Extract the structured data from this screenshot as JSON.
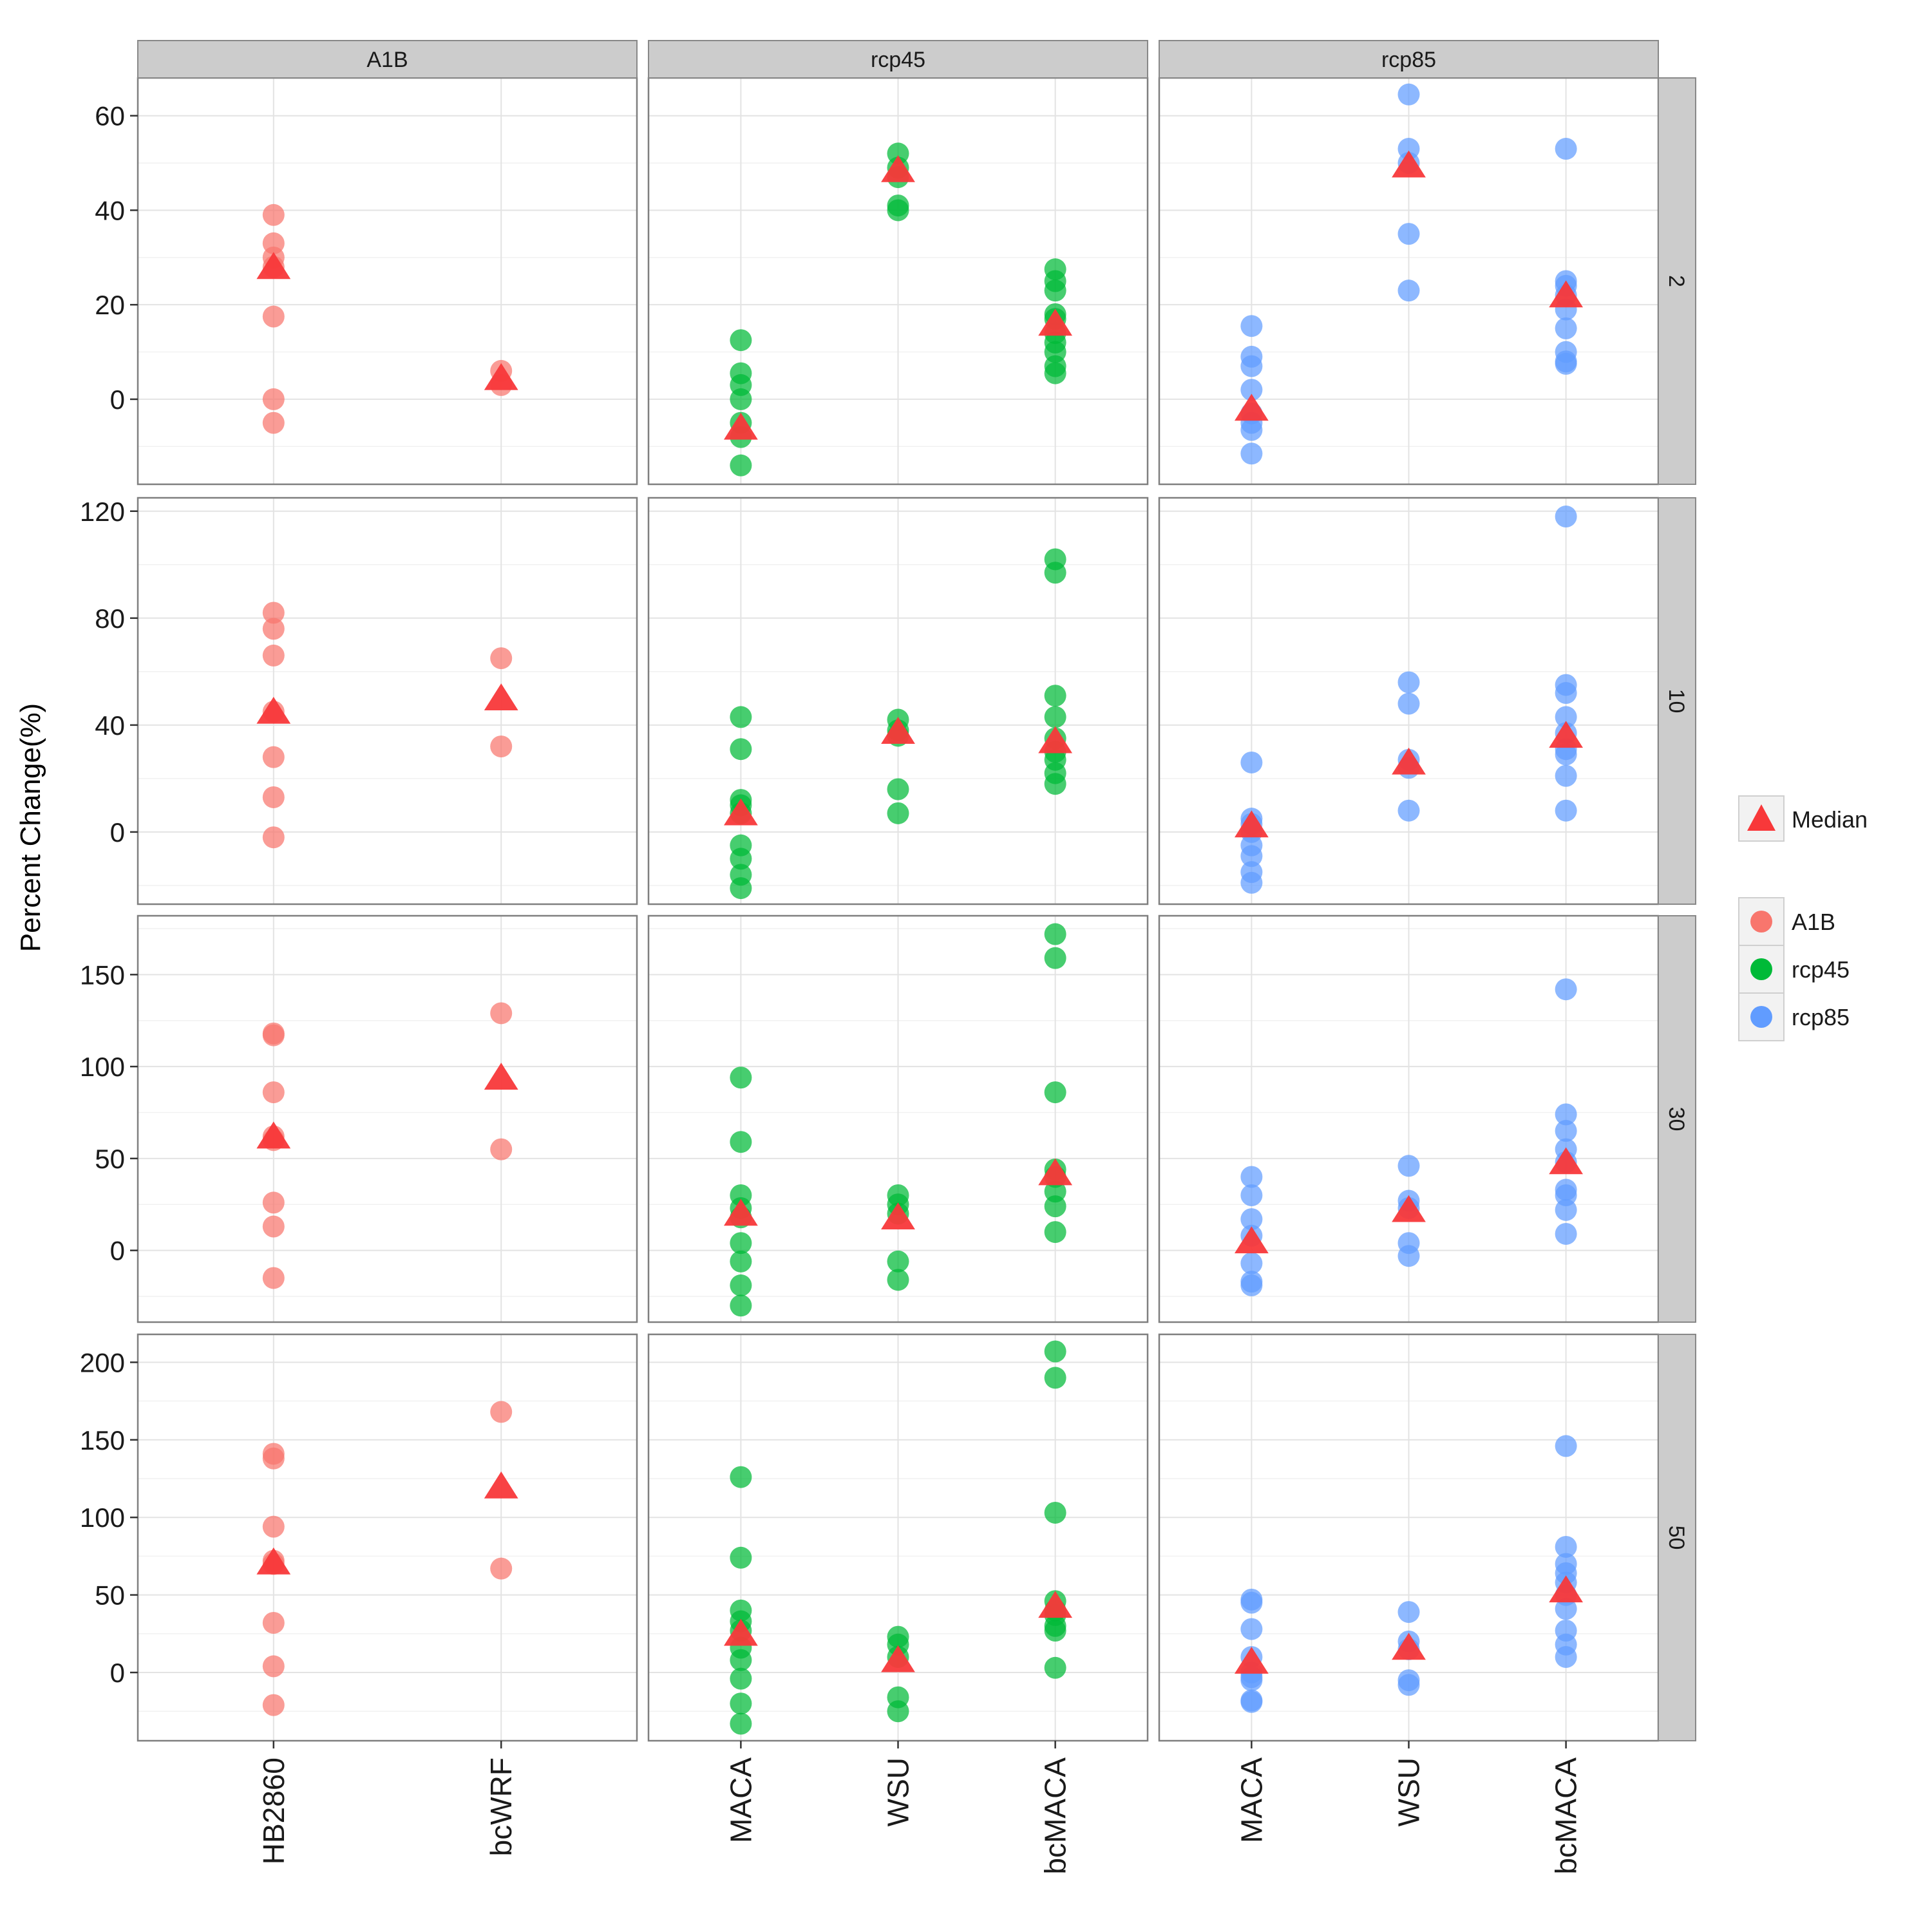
{
  "chart_data": {
    "type": "scatter",
    "ylabel": "Percent Change(%)",
    "xlabel": "",
    "grid": true,
    "legend_position": "right",
    "colors": {
      "A1B": "#F8766D",
      "rcp45": "#00BA38",
      "rcp85": "#619CFF",
      "median": "#F8383A"
    },
    "legend": {
      "median_label": "Median",
      "scenarios": [
        "A1B",
        "rcp45",
        "rcp85"
      ]
    },
    "columns": [
      {
        "name": "A1B",
        "categories": [
          "HB2860",
          "bcWRF"
        ]
      },
      {
        "name": "rcp45",
        "categories": [
          "MACA",
          "WSU",
          "bcMACA"
        ]
      },
      {
        "name": "rcp85",
        "categories": [
          "MACA",
          "WSU",
          "bcMACA"
        ]
      }
    ],
    "rows": [
      {
        "name": "2",
        "ylim": [
          -18,
          68
        ],
        "ticks": [
          0,
          20,
          40,
          60
        ]
      },
      {
        "name": "10",
        "ylim": [
          -27,
          125
        ],
        "ticks": [
          0,
          40,
          80,
          120
        ]
      },
      {
        "name": "30",
        "ylim": [
          -39,
          182
        ],
        "ticks": [
          0,
          50,
          100,
          150
        ]
      },
      {
        "name": "50",
        "ylim": [
          -44,
          218
        ],
        "ticks": [
          0,
          50,
          100,
          150,
          200
        ]
      }
    ],
    "panels": [
      {
        "row": "2",
        "column": "A1B",
        "series": [
          {
            "category": "HB2860",
            "values": [
              39,
              33,
              30,
              28,
              17.5,
              0,
              -5
            ],
            "median": 28
          },
          {
            "category": "bcWRF",
            "values": [
              6,
              3
            ],
            "median": 4.5
          }
        ]
      },
      {
        "row": "2",
        "column": "rcp45",
        "series": [
          {
            "category": "MACA",
            "values": [
              12.5,
              5.5,
              3,
              0,
              -5,
              -8,
              -14
            ],
            "median": -6
          },
          {
            "category": "WSU",
            "values": [
              52,
              49,
              47,
              41,
              40
            ],
            "median": 48.5
          },
          {
            "category": "bcMACA",
            "values": [
              27.5,
              25,
              23,
              18,
              17,
              14,
              12,
              10,
              7,
              5.5
            ],
            "median": 16
          }
        ]
      },
      {
        "row": "2",
        "column": "rcp85",
        "series": [
          {
            "category": "MACA",
            "values": [
              15.5,
              9,
              7,
              2,
              -3,
              -5,
              -6.5,
              -11.5
            ],
            "median": -2
          },
          {
            "category": "WSU",
            "values": [
              64.5,
              53,
              50,
              35,
              23
            ],
            "median": 49.5
          },
          {
            "category": "bcMACA",
            "values": [
              53,
              25,
              24,
              22,
              19,
              15,
              10,
              8,
              7.5
            ],
            "median": 22
          }
        ]
      },
      {
        "row": "10",
        "column": "A1B",
        "series": [
          {
            "category": "HB2860",
            "values": [
              82,
              76,
              66,
              45,
              28,
              13,
              -2
            ],
            "median": 45
          },
          {
            "category": "bcWRF",
            "values": [
              65,
              32
            ],
            "median": 50
          }
        ]
      },
      {
        "row": "10",
        "column": "rcp45",
        "series": [
          {
            "category": "MACA",
            "values": [
              43,
              31,
              12,
              10,
              7,
              -5,
              -10,
              -16,
              -21
            ],
            "median": 7
          },
          {
            "category": "WSU",
            "values": [
              42,
              38,
              36,
              16,
              7
            ],
            "median": 37.5
          },
          {
            "category": "bcMACA",
            "values": [
              102,
              97,
              51,
              43,
              35,
              30,
              27,
              22,
              18
            ],
            "median": 34
          }
        ]
      },
      {
        "row": "10",
        "column": "rcp85",
        "series": [
          {
            "category": "MACA",
            "values": [
              26,
              5,
              3,
              0,
              -5,
              -9,
              -15,
              -19
            ],
            "median": 2.5
          },
          {
            "category": "WSU",
            "values": [
              56,
              48,
              27,
              24,
              8
            ],
            "median": 26
          },
          {
            "category": "bcMACA",
            "values": [
              118,
              55,
              52,
              43,
              37,
              31,
              29,
              21,
              8
            ],
            "median": 36
          }
        ]
      },
      {
        "row": "30",
        "column": "A1B",
        "series": [
          {
            "category": "HB2860",
            "values": [
              118,
              117,
              86,
              62,
              60,
              26,
              13,
              -15
            ],
            "median": 62
          },
          {
            "category": "bcWRF",
            "values": [
              129,
              55
            ],
            "median": 94
          }
        ]
      },
      {
        "row": "30",
        "column": "rcp45",
        "series": [
          {
            "category": "MACA",
            "values": [
              94,
              59,
              30,
              23,
              18,
              4,
              -6,
              -19,
              -30
            ],
            "median": 20
          },
          {
            "category": "WSU",
            "values": [
              30,
              25,
              20,
              -6,
              -16
            ],
            "median": 18
          },
          {
            "category": "bcMACA",
            "values": [
              172,
              159,
              86,
              44,
              40,
              32,
              24,
              10
            ],
            "median": 42
          }
        ]
      },
      {
        "row": "30",
        "column": "rcp85",
        "series": [
          {
            "category": "MACA",
            "values": [
              40,
              30,
              17,
              8,
              -7,
              -17,
              -19
            ],
            "median": 5
          },
          {
            "category": "WSU",
            "values": [
              46,
              27,
              23,
              4,
              -3
            ],
            "median": 22
          },
          {
            "category": "bcMACA",
            "values": [
              142,
              74,
              65,
              55,
              48,
              33,
              30,
              22,
              9
            ],
            "median": 48
          }
        ]
      },
      {
        "row": "50",
        "column": "A1B",
        "series": [
          {
            "category": "HB2860",
            "values": [
              141,
              138,
              94,
              72,
              70,
              32,
              4,
              -21
            ],
            "median": 71
          },
          {
            "category": "bcWRF",
            "values": [
              168,
              67
            ],
            "median": 120
          }
        ]
      },
      {
        "row": "50",
        "column": "rcp45",
        "series": [
          {
            "category": "MACA",
            "values": [
              126,
              74,
              40,
              33,
              27,
              16,
              8,
              -4,
              -20,
              -33
            ],
            "median": 25
          },
          {
            "category": "WSU",
            "values": [
              23,
              18,
              10,
              -16,
              -25
            ],
            "median": 8
          },
          {
            "category": "bcMACA",
            "values": [
              207,
              190,
              103,
              46,
              40,
              37,
              30,
              27,
              3
            ],
            "median": 43
          }
        ]
      },
      {
        "row": "50",
        "column": "rcp85",
        "series": [
          {
            "category": "MACA",
            "values": [
              47,
              45,
              28,
              10,
              0,
              -3,
              -5,
              -18,
              -19
            ],
            "median": 7
          },
          {
            "category": "WSU",
            "values": [
              39,
              20,
              15,
              -5,
              -8
            ],
            "median": 16
          },
          {
            "category": "bcMACA",
            "values": [
              146,
              81,
              70,
              64,
              58,
              50,
              41,
              27,
              18,
              10
            ],
            "median": 53
          }
        ]
      }
    ]
  }
}
